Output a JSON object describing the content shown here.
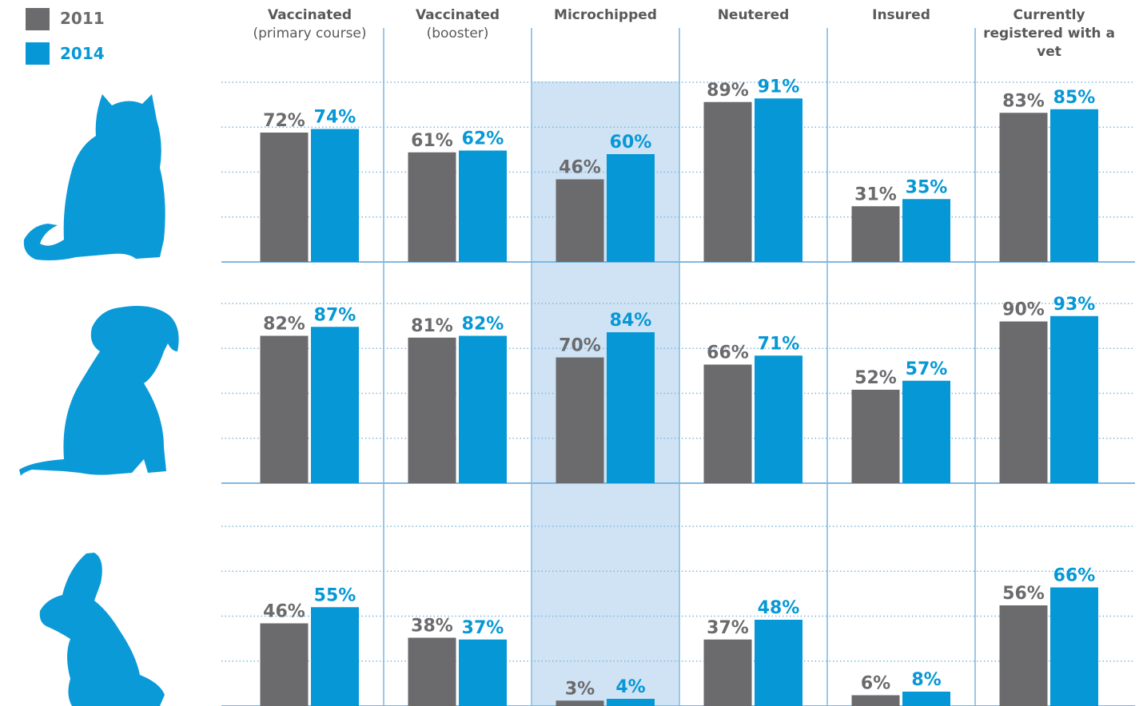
{
  "chart_data": [
    {
      "type": "bar",
      "categories": [
        {
          "label": "Vaccinated",
          "sublabel": "(primary course)"
        },
        {
          "label": "Vaccinated",
          "sublabel": "(booster)"
        },
        {
          "label": "Microchipped"
        },
        {
          "label": "Neutered"
        },
        {
          "label": "Insured"
        },
        {
          "label": "Currently registered with a vet"
        }
      ],
      "series": [
        {
          "name": "2011",
          "color": "#6b6b6e",
          "values": [
            72,
            61,
            46,
            89,
            31,
            83
          ],
          "value_labels": [
            "72%",
            "61%",
            "46%",
            "89%",
            "31%",
            "83%"
          ]
        },
        {
          "name": "2014",
          "color": "#0698d6",
          "values": [
            74,
            62,
            60,
            91,
            35,
            85
          ],
          "value_labels": [
            "74%",
            "62%",
            "60%",
            "91%",
            "35%",
            "85%"
          ]
        }
      ],
      "ylim": [
        0,
        100
      ],
      "yticks": [
        0,
        25,
        50,
        75,
        100
      ],
      "grid": true
    },
    {
      "type": "bar",
      "series": [
        {
          "color": "#6b6b6e",
          "values": [
            82,
            81,
            70,
            66,
            52,
            90
          ],
          "value_labels": [
            "82%",
            "81%",
            "70%",
            "66%",
            "52%",
            "90%"
          ]
        },
        {
          "color": "#0698d6",
          "values": [
            87,
            82,
            84,
            71,
            57,
            93
          ],
          "value_labels": [
            "87%",
            "82%",
            "84%",
            "71%",
            "57%",
            "93%"
          ]
        }
      ],
      "ylim": [
        0,
        100
      ],
      "yticks": [
        0,
        25,
        50,
        75,
        100
      ],
      "grid": true
    },
    {
      "type": "bar",
      "series": [
        {
          "color": "#6b6b6e",
          "values": [
            46,
            38,
            3,
            37,
            6,
            56
          ],
          "value_labels": [
            "46%",
            "38%",
            "3%",
            "37%",
            "6%",
            "56%"
          ]
        },
        {
          "color": "#0698d6",
          "values": [
            55,
            37,
            4,
            48,
            8,
            66
          ],
          "value_labels": [
            "55%",
            "37%",
            "4%",
            "48%",
            "8%",
            "66%"
          ]
        }
      ],
      "ylim": [
        0,
        100
      ],
      "yticks": [
        0,
        25,
        50,
        75,
        100
      ],
      "grid": true
    }
  ]
}
